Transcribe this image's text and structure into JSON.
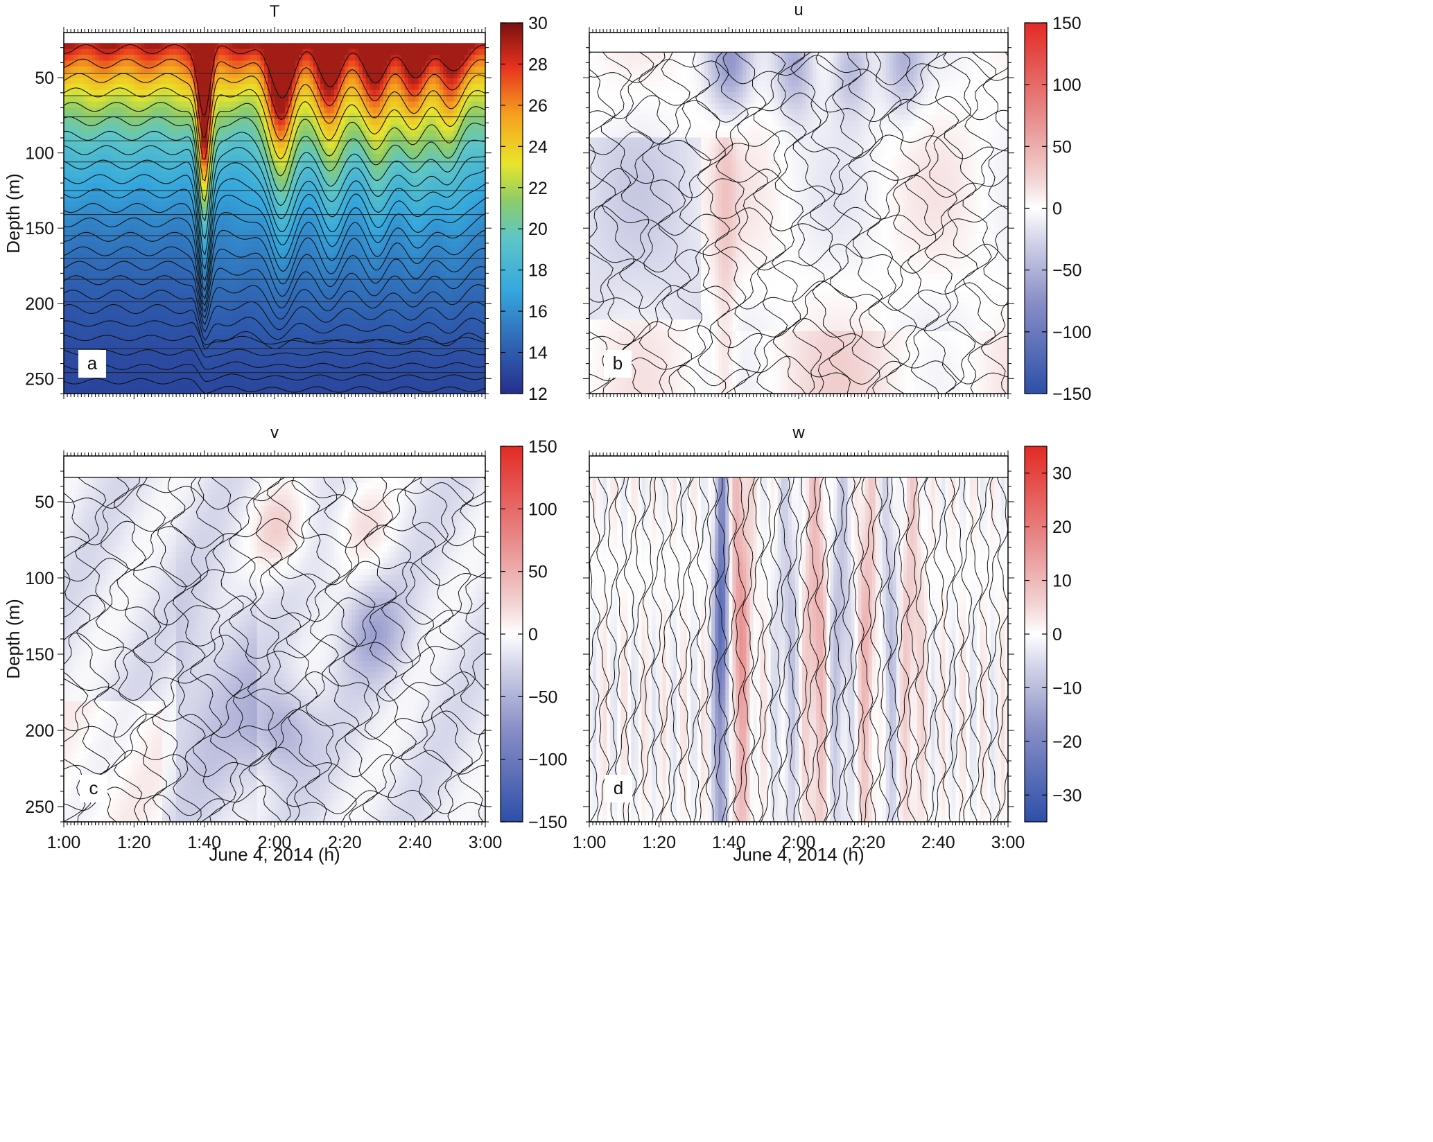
{
  "chart_data": [
    {
      "type": "heatmap",
      "panel": "a",
      "title": "T",
      "xlabel": "",
      "ylabel": "Depth (m)",
      "xlim": [
        0,
        120
      ],
      "x_units": "minutes after 1:00",
      "ylim": [
        20,
        260
      ],
      "y_inverted": true,
      "yticks": [
        "50",
        "100",
        "150",
        "200",
        "250"
      ],
      "xticks": [],
      "colorbar": {
        "min": 12,
        "max": 30,
        "ticks": [
          "12",
          "14",
          "16",
          "18",
          "20",
          "22",
          "24",
          "26",
          "28",
          "30"
        ],
        "colormap": "jet"
      },
      "surface_depth": 27,
      "features": [
        {
          "time": 40,
          "dip": 70
        },
        {
          "time": 62,
          "dip": 48
        },
        {
          "time": 76,
          "dip": 36
        },
        {
          "time": 89,
          "dip": 32
        },
        {
          "time": 100,
          "dip": 26
        },
        {
          "time": 110,
          "dip": 22
        }
      ]
    },
    {
      "type": "heatmap",
      "panel": "b",
      "title": "u",
      "xlabel": "",
      "ylabel": "",
      "xlim": [
        0,
        120
      ],
      "ylim": [
        20,
        260
      ],
      "y_inverted": true,
      "yticks": [],
      "xticks": [],
      "colorbar": {
        "min": -150,
        "max": 150,
        "ticks": [
          "150",
          "100",
          "50",
          "0",
          "−50",
          "−100",
          "−150"
        ],
        "colormap": "blue-white-red"
      },
      "surface_depth": 33,
      "features": [
        {
          "time": 40,
          "dip": 45,
          "value": -65
        },
        {
          "time": 59,
          "dip": 40,
          "value": -55
        },
        {
          "time": 75,
          "dip": 30,
          "value": -50
        },
        {
          "time": 90,
          "dip": 25,
          "value": -45
        }
      ]
    },
    {
      "type": "heatmap",
      "panel": "c",
      "title": "v",
      "xlabel": "June 4, 2014 (h)",
      "ylabel": "Depth (m)",
      "xlim": [
        0,
        120
      ],
      "ylim": [
        20,
        260
      ],
      "y_inverted": true,
      "yticks": [
        "50",
        "100",
        "150",
        "200",
        "250"
      ],
      "xticks": [
        "1:00",
        "1:20",
        "1:40",
        "2:00",
        "2:20",
        "2:40",
        "3:00"
      ],
      "colorbar": {
        "min": -150,
        "max": 150,
        "ticks": [
          "150",
          "100",
          "50",
          "0",
          "−50",
          "−100",
          "−150"
        ],
        "colormap": "blue-white-red"
      },
      "surface_depth": 34,
      "features": [
        {
          "time": 62,
          "depth": 70,
          "value": 35
        },
        {
          "time": 85,
          "depth": 62,
          "value": 25
        },
        {
          "time": 88,
          "depth": 135,
          "value": -40
        },
        {
          "time": 62,
          "depth": 200,
          "value": -45
        }
      ]
    },
    {
      "type": "heatmap",
      "panel": "d",
      "title": "w",
      "xlabel": "June 4, 2014 (h)",
      "ylabel": "",
      "xlim": [
        0,
        120
      ],
      "ylim": [
        20,
        260
      ],
      "y_inverted": true,
      "yticks": [],
      "xticks": [
        "1:00",
        "1:20",
        "1:40",
        "2:00",
        "2:20",
        "2:40",
        "3:00"
      ],
      "colorbar": {
        "min": -35,
        "max": 35,
        "ticks": [
          "30",
          "20",
          "10",
          "0",
          "−10",
          "−20",
          "−30"
        ],
        "colormap": "blue-white-red"
      },
      "surface_depth": 34,
      "features": [
        {
          "time": 38,
          "value": -30
        },
        {
          "time": 43,
          "value": 15
        },
        {
          "time": 57,
          "value": -8
        },
        {
          "time": 65,
          "value": 12
        },
        {
          "time": 72,
          "value": -10
        },
        {
          "time": 80,
          "value": 10
        },
        {
          "time": 86,
          "value": -9
        },
        {
          "time": 92,
          "value": 8
        }
      ]
    }
  ],
  "panel_labels": [
    "a",
    "b",
    "c",
    "d"
  ]
}
